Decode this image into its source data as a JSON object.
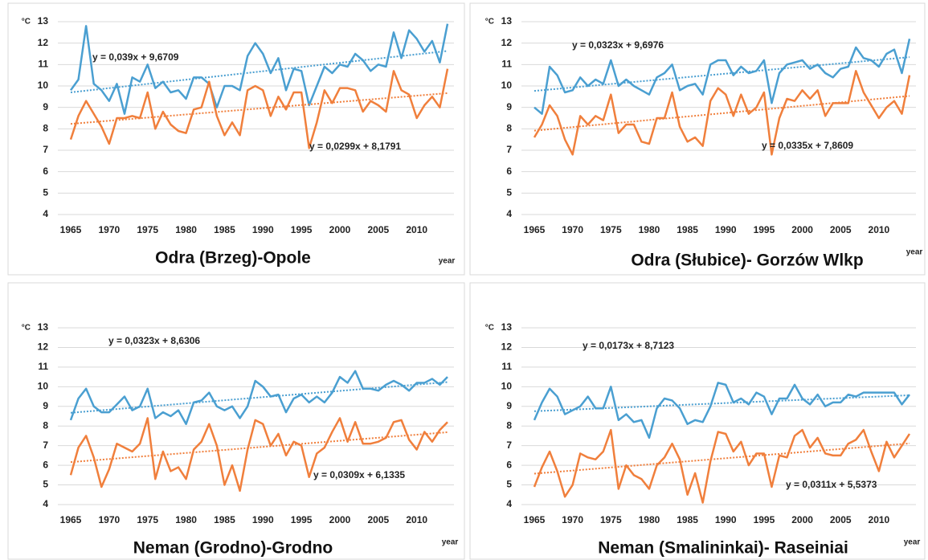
{
  "chart_data": [
    {
      "type": "line",
      "title": "Odra (Brzeg)-Opole",
      "y_label": "°C",
      "x_label": "year",
      "x": [
        1965,
        1966,
        1967,
        1968,
        1969,
        1970,
        1971,
        1972,
        1973,
        1974,
        1975,
        1976,
        1977,
        1978,
        1979,
        1980,
        1981,
        1982,
        1983,
        1984,
        1985,
        1986,
        1987,
        1988,
        1989,
        1990,
        1991,
        1992,
        1993,
        1994,
        1995,
        1996,
        1997,
        1998,
        1999,
        2000,
        2001,
        2002,
        2003,
        2004,
        2005,
        2006,
        2007,
        2008,
        2009,
        2010,
        2011,
        2012,
        2013,
        2014
      ],
      "xlim": [
        1965,
        2014
      ],
      "xticks": [
        1965,
        1970,
        1975,
        1980,
        1985,
        1990,
        1995,
        2000,
        2005,
        2010
      ],
      "ylim": [
        4,
        13
      ],
      "yticks": [
        4,
        5,
        6,
        7,
        8,
        9,
        10,
        11,
        12,
        13
      ],
      "grid": true,
      "series": [
        {
          "color": "#4a9fd1",
          "trend_label": "y = 0,039x + 9,6709",
          "values": [
            9.8,
            10.3,
            12.8,
            10.1,
            9.8,
            9.3,
            10.1,
            8.7,
            10.4,
            10.2,
            11.0,
            9.9,
            10.2,
            9.7,
            9.8,
            9.4,
            10.4,
            10.4,
            10.1,
            9.0,
            10.0,
            10.0,
            9.8,
            11.4,
            12.0,
            11.5,
            10.6,
            11.3,
            9.8,
            10.8,
            10.7,
            9.1,
            10.0,
            10.9,
            10.6,
            11.0,
            10.9,
            11.5,
            11.2,
            10.7,
            11.0,
            10.9,
            12.5,
            11.3,
            12.6,
            12.2,
            11.6,
            12.1,
            11.1,
            12.9
          ]
        },
        {
          "color": "#f07f3c",
          "trend_label": "y = 0,0299x + 8,1791",
          "values": [
            7.5,
            8.6,
            9.3,
            8.7,
            8.1,
            7.3,
            8.5,
            8.5,
            8.6,
            8.5,
            9.7,
            8.0,
            8.8,
            8.2,
            7.9,
            7.8,
            8.9,
            9.0,
            10.2,
            8.6,
            7.7,
            8.3,
            7.7,
            9.8,
            10.0,
            9.8,
            8.6,
            9.5,
            8.9,
            9.7,
            9.7,
            7.1,
            8.3,
            9.8,
            9.2,
            9.9,
            9.9,
            9.8,
            8.8,
            9.3,
            9.1,
            8.8,
            10.7,
            9.8,
            9.6,
            8.5,
            9.1,
            9.5,
            9.0,
            10.8
          ]
        }
      ]
    },
    {
      "type": "line",
      "title": "Odra (Słubice)- Gorzów Wlkp",
      "y_label": "°C",
      "x_label": "year",
      "x": [
        1965,
        1966,
        1967,
        1968,
        1969,
        1970,
        1971,
        1972,
        1973,
        1974,
        1975,
        1976,
        1977,
        1978,
        1979,
        1980,
        1981,
        1982,
        1983,
        1984,
        1985,
        1986,
        1987,
        1988,
        1989,
        1990,
        1991,
        1992,
        1993,
        1994,
        1995,
        1996,
        1997,
        1998,
        1999,
        2000,
        2001,
        2002,
        2003,
        2004,
        2005,
        2006,
        2007,
        2008,
        2009,
        2010,
        2011,
        2012,
        2013,
        2014
      ],
      "xlim": [
        1965,
        2014
      ],
      "xticks": [
        1965,
        1970,
        1975,
        1980,
        1985,
        1990,
        1995,
        2000,
        2005,
        2010
      ],
      "ylim": [
        4,
        13
      ],
      "yticks": [
        4,
        5,
        6,
        7,
        8,
        9,
        10,
        11,
        12,
        13
      ],
      "grid": true,
      "series": [
        {
          "color": "#4a9fd1",
          "trend_label": "y = 0,0323x + 9,6976",
          "values": [
            9.0,
            8.7,
            10.9,
            10.5,
            9.7,
            9.8,
            10.4,
            10.0,
            10.3,
            10.1,
            11.2,
            10.0,
            10.3,
            10.0,
            9.8,
            9.6,
            10.4,
            10.6,
            11.0,
            9.8,
            10.0,
            10.1,
            9.6,
            11.0,
            11.2,
            11.2,
            10.5,
            10.9,
            10.6,
            10.7,
            11.2,
            9.2,
            10.6,
            11.0,
            11.1,
            11.2,
            10.8,
            11.0,
            10.6,
            10.4,
            10.8,
            10.9,
            11.8,
            11.3,
            11.2,
            10.9,
            11.5,
            11.7,
            10.6,
            12.2
          ]
        },
        {
          "color": "#f07f3c",
          "trend_label": "y = 0,0335x + 7,8609",
          "values": [
            7.6,
            8.2,
            9.1,
            8.6,
            7.5,
            6.8,
            8.6,
            8.2,
            8.6,
            8.4,
            9.6,
            7.8,
            8.2,
            8.2,
            7.4,
            7.3,
            8.5,
            8.5,
            9.7,
            8.1,
            7.4,
            7.6,
            7.2,
            9.3,
            9.9,
            9.6,
            8.6,
            9.6,
            8.7,
            9.0,
            9.7,
            6.8,
            8.5,
            9.4,
            9.3,
            9.8,
            9.4,
            9.8,
            8.6,
            9.2,
            9.2,
            9.2,
            10.7,
            9.7,
            9.1,
            8.5,
            9.0,
            9.3,
            8.7,
            10.5
          ]
        }
      ]
    },
    {
      "type": "line",
      "title": "Neman (Grodno)-Grodno",
      "y_label": "°C",
      "x_label": "year",
      "x": [
        1965,
        1966,
        1967,
        1968,
        1969,
        1970,
        1971,
        1972,
        1973,
        1974,
        1975,
        1976,
        1977,
        1978,
        1979,
        1980,
        1981,
        1982,
        1983,
        1984,
        1985,
        1986,
        1987,
        1988,
        1989,
        1990,
        1991,
        1992,
        1993,
        1994,
        1995,
        1996,
        1997,
        1998,
        1999,
        2000,
        2001,
        2002,
        2003,
        2004,
        2005,
        2006,
        2007,
        2008,
        2009,
        2010,
        2011,
        2012,
        2013,
        2014
      ],
      "xlim": [
        1965,
        2014
      ],
      "xticks": [
        1965,
        1970,
        1975,
        1980,
        1985,
        1990,
        1995,
        2000,
        2005,
        2010
      ],
      "ylim": [
        4,
        13
      ],
      "yticks": [
        4,
        5,
        6,
        7,
        8,
        9,
        10,
        11,
        12,
        13
      ],
      "grid": true,
      "series": [
        {
          "color": "#4a9fd1",
          "trend_label": "y = 0,0323x + 8,6306",
          "values": [
            8.3,
            9.4,
            9.9,
            9.0,
            8.7,
            8.7,
            9.1,
            9.5,
            8.8,
            9.0,
            9.9,
            8.4,
            8.7,
            8.5,
            8.8,
            8.1,
            9.2,
            9.3,
            9.7,
            9.0,
            8.8,
            9.0,
            8.4,
            9.0,
            10.3,
            10.0,
            9.5,
            9.6,
            8.7,
            9.4,
            9.6,
            9.2,
            9.5,
            9.2,
            9.7,
            10.5,
            10.2,
            10.8,
            9.9,
            9.9,
            9.8,
            10.1,
            10.3,
            10.1,
            9.8,
            10.2,
            10.2,
            10.4,
            10.1,
            10.5
          ]
        },
        {
          "color": "#f07f3c",
          "trend_label": "y = 0,0309x + 6,1335",
          "values": [
            5.5,
            6.9,
            7.5,
            6.4,
            4.9,
            5.8,
            7.1,
            6.9,
            6.7,
            7.1,
            8.4,
            5.3,
            6.7,
            5.7,
            5.9,
            5.3,
            6.8,
            7.2,
            8.1,
            7.0,
            5.0,
            6.0,
            4.7,
            6.8,
            8.3,
            8.1,
            7.0,
            7.6,
            6.5,
            7.2,
            7.0,
            5.4,
            6.6,
            6.9,
            7.7,
            8.4,
            7.2,
            8.2,
            7.1,
            7.1,
            7.2,
            7.4,
            8.2,
            8.3,
            7.3,
            6.8,
            7.7,
            7.2,
            7.8,
            8.2
          ]
        }
      ]
    },
    {
      "type": "line",
      "title": "Neman (Smalininkai)- Raseiniai",
      "y_label": "°C",
      "x_label": "year",
      "x": [
        1965,
        1966,
        1967,
        1968,
        1969,
        1970,
        1971,
        1972,
        1973,
        1974,
        1975,
        1976,
        1977,
        1978,
        1979,
        1980,
        1981,
        1982,
        1983,
        1984,
        1985,
        1986,
        1987,
        1988,
        1989,
        1990,
        1991,
        1992,
        1993,
        1994,
        1995,
        1996,
        1997,
        1998,
        1999,
        2000,
        2001,
        2002,
        2003,
        2004,
        2005,
        2006,
        2007,
        2008,
        2009,
        2010,
        2011,
        2012,
        2013,
        2014
      ],
      "xlim": [
        1965,
        2014
      ],
      "xticks": [
        1965,
        1970,
        1975,
        1980,
        1985,
        1990,
        1995,
        2000,
        2005,
        2010
      ],
      "ylim": [
        4,
        13
      ],
      "yticks": [
        4,
        5,
        6,
        7,
        8,
        9,
        10,
        11,
        12,
        13
      ],
      "grid": true,
      "series": [
        {
          "color": "#4a9fd1",
          "trend_label": "y = 0,0173x + 8,7123",
          "values": [
            8.3,
            9.2,
            9.9,
            9.5,
            8.6,
            8.8,
            9.0,
            9.5,
            8.9,
            8.9,
            10.0,
            8.3,
            8.6,
            8.2,
            8.3,
            7.4,
            8.9,
            9.4,
            9.3,
            8.9,
            8.1,
            8.3,
            8.2,
            9.0,
            10.2,
            10.1,
            9.2,
            9.4,
            9.1,
            9.7,
            9.5,
            8.6,
            9.4,
            9.4,
            10.1,
            9.4,
            9.1,
            9.6,
            9.0,
            9.2,
            9.2,
            9.6,
            9.5,
            9.7,
            9.7,
            9.7,
            9.7,
            9.7,
            9.1,
            9.6
          ]
        },
        {
          "color": "#f07f3c",
          "trend_label": "y = 0,0311x + 5,5373",
          "values": [
            4.9,
            5.9,
            6.7,
            5.7,
            4.4,
            5.0,
            6.6,
            6.4,
            6.3,
            6.7,
            7.8,
            4.8,
            6.0,
            5.5,
            5.3,
            4.8,
            6.0,
            6.4,
            7.1,
            6.3,
            4.5,
            5.6,
            4.1,
            6.2,
            7.7,
            7.6,
            6.7,
            7.2,
            6.0,
            6.6,
            6.6,
            4.9,
            6.5,
            6.4,
            7.5,
            7.8,
            6.9,
            7.4,
            6.6,
            6.5,
            6.5,
            7.1,
            7.3,
            7.8,
            6.7,
            5.7,
            7.2,
            6.4,
            7.0,
            7.6
          ]
        }
      ]
    }
  ]
}
